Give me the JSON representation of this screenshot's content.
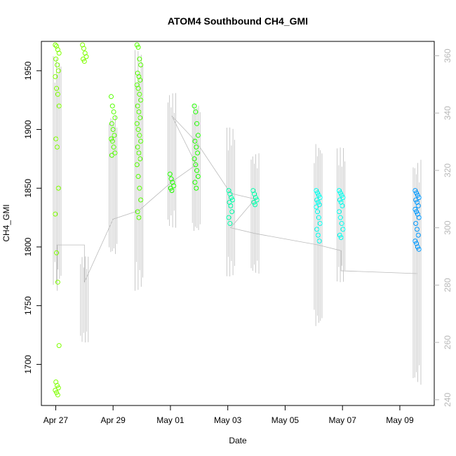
{
  "chart_data": {
    "type": "scatter",
    "title": "ATOM4 Southbound CH4_GMI",
    "xlabel": "Date",
    "ylabel": "CH4_GMI",
    "x_ticks": [
      "Apr 27",
      "Apr 29",
      "May 01",
      "May 03",
      "May 05",
      "May 07",
      "May 09"
    ],
    "x_tick_days": [
      0,
      2,
      4,
      6,
      8,
      10,
      12
    ],
    "xlim_days": [
      -0.5,
      13.2
    ],
    "ylim": [
      1665,
      1975
    ],
    "y_ticks": [
      1700,
      1750,
      1800,
      1850,
      1900,
      1950
    ],
    "right_axis": {
      "label": "",
      "ylim": [
        238,
        365
      ],
      "ticks": [
        240,
        260,
        280,
        300,
        320,
        340,
        360
      ],
      "color": "#b8b8b8"
    },
    "grid": false,
    "series": [
      {
        "kind": "points",
        "color": "#7fff00",
        "clusters": [
          {
            "x": 0.05,
            "values": [
              1972,
              1971,
              1968,
              1965,
              1960,
              1955,
              1950,
              1945,
              1935,
              1930,
              1920,
              1892,
              1885,
              1850,
              1828,
              1795,
              1770,
              1716,
              1685,
              1682,
              1680,
              1678,
              1676,
              1674
            ]
          },
          {
            "x": 1.0,
            "values": [
              1972,
              1969,
              1965,
              1962,
              1960,
              1958
            ]
          }
        ]
      },
      {
        "kind": "points",
        "color": "#55ff00",
        "clusters": [
          {
            "x": 2.0,
            "values": [
              1928,
              1920,
              1915,
              1910,
              1905,
              1900,
              1895,
              1892,
              1890,
              1885,
              1880,
              1878
            ]
          },
          {
            "x": 2.9,
            "values": [
              1972,
              1970,
              1960,
              1955,
              1948,
              1945,
              1942,
              1938,
              1935,
              1930,
              1925,
              1920,
              1915,
              1910,
              1905,
              1900,
              1895,
              1890,
              1885,
              1880,
              1875,
              1870,
              1860,
              1850,
              1840,
              1830,
              1825
            ]
          }
        ]
      },
      {
        "kind": "points",
        "color": "#22ff00",
        "clusters": [
          {
            "x": 4.05,
            "values": [
              1862,
              1858,
              1855,
              1852,
              1850,
              1848
            ]
          },
          {
            "x": 4.9,
            "values": [
              1920,
              1915,
              1905,
              1895,
              1890,
              1885,
              1880,
              1875,
              1870,
              1865,
              1860,
              1855,
              1850
            ]
          }
        ]
      },
      {
        "kind": "points",
        "color": "#00ffaa",
        "clusters": [
          {
            "x": 6.1,
            "values": [
              1848,
              1845,
              1842,
              1840,
              1838,
              1835,
              1830,
              1825,
              1820
            ]
          },
          {
            "x": 6.95,
            "values": [
              1848,
              1845,
              1842,
              1840,
              1838,
              1836
            ]
          }
        ]
      },
      {
        "kind": "points",
        "color": "#00ffee",
        "clusters": [
          {
            "x": 9.15,
            "values": [
              1848,
              1846,
              1844,
              1842,
              1840,
              1838,
              1836,
              1834,
              1830,
              1825,
              1820,
              1815,
              1810,
              1805
            ]
          },
          {
            "x": 9.95,
            "values": [
              1848,
              1846,
              1844,
              1842,
              1840,
              1838,
              1835,
              1830,
              1825,
              1820,
              1815,
              1810,
              1808
            ]
          }
        ]
      },
      {
        "kind": "points",
        "color": "#0099ff",
        "clusters": [
          {
            "x": 12.6,
            "values": [
              1848,
              1846,
              1844,
              1842,
              1840,
              1838,
              1835,
              1832,
              1830,
              1828,
              1825,
              1820,
              1815,
              1810,
              1805,
              1803,
              1800,
              1798
            ]
          }
        ]
      },
      {
        "kind": "spikes",
        "axis": "right",
        "color": "#bbbbbb",
        "values": [
          {
            "x": 0.05,
            "low": 280,
            "high": 360
          },
          {
            "x": 1.0,
            "low": 260,
            "high": 290
          },
          {
            "x": 2.0,
            "low": 290,
            "high": 340
          },
          {
            "x": 2.9,
            "low": 278,
            "high": 362
          },
          {
            "x": 4.05,
            "low": 300,
            "high": 347
          },
          {
            "x": 4.9,
            "low": 298,
            "high": 344
          },
          {
            "x": 6.1,
            "low": 283,
            "high": 335
          },
          {
            "x": 6.95,
            "low": 284,
            "high": 326
          },
          {
            "x": 9.15,
            "low": 265,
            "high": 330
          },
          {
            "x": 9.95,
            "low": 281,
            "high": 328
          },
          {
            "x": 12.6,
            "low": 245,
            "high": 324
          }
        ]
      },
      {
        "kind": "connector",
        "axis": "right",
        "color": "#bbbbbb",
        "points": [
          [
            0.05,
            278
          ],
          [
            0.05,
            294
          ],
          [
            1.0,
            294
          ],
          [
            1.0,
            281
          ],
          [
            2.0,
            303
          ],
          [
            2.9,
            306
          ],
          [
            4.05,
            316
          ],
          [
            4.9,
            322
          ],
          [
            4.05,
            339
          ],
          [
            4.9,
            330
          ],
          [
            6.1,
            312
          ],
          [
            6.95,
            310
          ],
          [
            6.1,
            300
          ],
          [
            6.95,
            298
          ],
          [
            9.15,
            294
          ],
          [
            9.95,
            292
          ],
          [
            9.95,
            285
          ],
          [
            12.6,
            284
          ]
        ]
      }
    ]
  }
}
